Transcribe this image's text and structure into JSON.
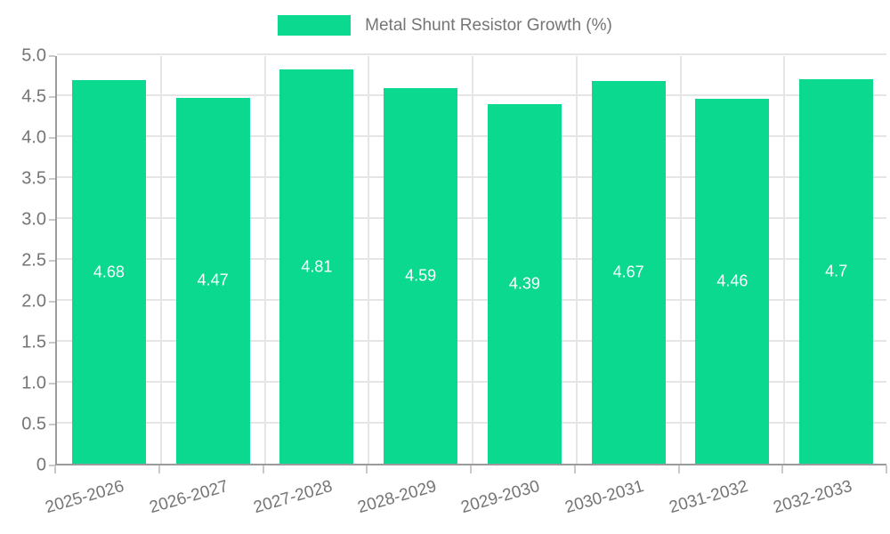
{
  "chart_data": {
    "type": "bar",
    "title": "Metal Shunt Resistor Growth (%)",
    "categories": [
      "2025-2026",
      "2026-2027",
      "2027-2028",
      "2028-2029",
      "2029-2030",
      "2030-2031",
      "2031-2032",
      "2032-2033"
    ],
    "values": [
      4.68,
      4.47,
      4.81,
      4.59,
      4.39,
      4.67,
      4.46,
      4.7
    ],
    "value_labels": [
      "4.68",
      "4.47",
      "4.81",
      "4.59",
      "4.39",
      "4.67",
      "4.46",
      "4.7"
    ],
    "xlabel": "",
    "ylabel": "",
    "ylim": [
      0,
      5
    ],
    "ytick_step": 0.5,
    "ytick_labels": [
      "0",
      "0.5",
      "1.0",
      "1.5",
      "2.0",
      "2.5",
      "3.0",
      "3.5",
      "4.0",
      "4.5",
      "5.0"
    ],
    "grid": true,
    "legend_position": "top-center",
    "colors": {
      "bar": "#0ad98f",
      "bar_value_text": "#ffffff",
      "axis_line": "#9b9b9b",
      "gridline": "#e5e5e5",
      "tick_mark": "#c9c9c9",
      "tick_text": "#757575",
      "legend_text": "#757575",
      "background": "#ffffff"
    }
  }
}
